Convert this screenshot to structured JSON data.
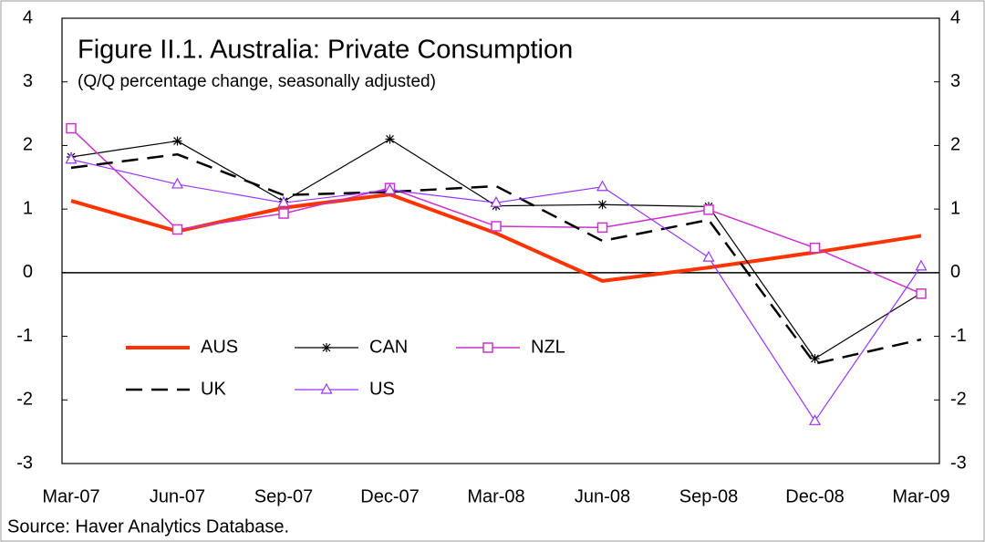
{
  "chart_data": {
    "type": "line",
    "title": "Figure II.1. Australia: Private Consumption",
    "subtitle": "(Q/Q percentage change, seasonally adjusted)",
    "source": "Source: Haver Analytics Database.",
    "categories": [
      "Mar-07",
      "Jun-07",
      "Sep-07",
      "Dec-07",
      "Mar-08",
      "Jun-08",
      "Sep-08",
      "Dec-08",
      "Mar-09"
    ],
    "ylim": [
      -3,
      4
    ],
    "yticks": [
      -3,
      -2,
      -1,
      0,
      1,
      2,
      3,
      4
    ],
    "y2lim": [
      -3,
      4
    ],
    "y2ticks": [
      -3,
      -2,
      -1,
      0,
      1,
      2,
      3,
      4
    ],
    "series": [
      {
        "name": "AUS",
        "color": "#ff3300",
        "width": 4,
        "dash": false,
        "marker": "none",
        "values": [
          1.13,
          0.65,
          1.02,
          1.23,
          0.62,
          -0.13,
          0.08,
          0.32,
          0.58
        ]
      },
      {
        "name": "CAN",
        "color": "#000000",
        "width": 1.2,
        "dash": false,
        "marker": "star",
        "values": [
          1.82,
          2.07,
          1.12,
          2.1,
          1.05,
          1.07,
          1.04,
          -1.35,
          -0.32
        ]
      },
      {
        "name": "NZL",
        "color": "#cc33cc",
        "width": 1.5,
        "dash": false,
        "marker": "square",
        "values": [
          2.27,
          0.68,
          0.93,
          1.33,
          0.73,
          0.71,
          0.99,
          0.39,
          -0.33
        ]
      },
      {
        "name": "UK",
        "color": "#000000",
        "width": 2.5,
        "dash": true,
        "marker": "none",
        "values": [
          1.65,
          1.86,
          1.22,
          1.27,
          1.36,
          0.5,
          0.83,
          -1.43,
          -1.05
        ]
      },
      {
        "name": "US",
        "color": "#9933ff",
        "width": 1.2,
        "dash": false,
        "marker": "triangle",
        "values": [
          1.78,
          1.39,
          1.1,
          1.3,
          1.1,
          1.35,
          0.24,
          -2.33,
          0.1
        ]
      }
    ]
  }
}
